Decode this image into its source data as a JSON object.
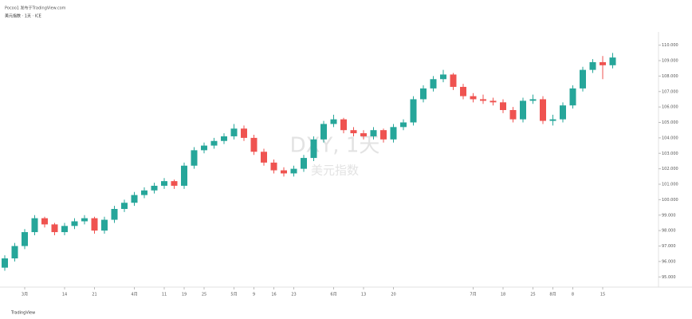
{
  "header": {
    "publisher": "Pocoo1 发布于TradingView.com",
    "symbol_line": "美元指数 · 1天 · ICE"
  },
  "footer": {
    "brand": "TradingView"
  },
  "chart_data": {
    "type": "candlestick",
    "watermark": {
      "symbol": "DXY, 1天",
      "name": "美元指数"
    },
    "up_color": "#26a69a",
    "down_color": "#ef5350",
    "open": [
      95.6,
      96.2,
      97.0,
      97.9,
      98.8,
      98.4,
      97.9,
      98.3,
      98.6,
      98.8,
      98.0,
      98.7,
      99.4,
      99.8,
      100.3,
      100.6,
      100.9,
      101.2,
      100.9,
      102.2,
      103.2,
      103.5,
      103.8,
      104.1,
      104.6,
      104.0,
      103.1,
      102.4,
      101.9,
      101.7,
      102.0,
      102.7,
      103.9,
      104.9,
      105.2,
      104.5,
      104.3,
      104.1,
      104.5,
      103.9,
      104.7,
      105.0,
      106.5,
      107.2,
      107.8,
      108.1,
      107.3,
      106.7,
      106.5,
      106.4,
      106.3,
      105.8,
      105.2,
      106.4,
      106.5,
      105.1,
      105.2,
      106.1,
      107.2,
      108.4,
      108.9,
      108.7
    ],
    "high": [
      96.4,
      97.2,
      98.1,
      99.0,
      98.9,
      98.5,
      98.5,
      98.8,
      99.0,
      98.9,
      98.9,
      99.6,
      100.0,
      100.5,
      100.8,
      101.1,
      101.4,
      101.3,
      102.4,
      103.4,
      103.7,
      104.0,
      104.3,
      104.9,
      104.8,
      104.2,
      103.3,
      102.6,
      102.1,
      102.2,
      102.9,
      104.1,
      105.1,
      105.5,
      105.3,
      104.7,
      104.5,
      104.7,
      104.6,
      104.9,
      105.2,
      106.7,
      107.4,
      108.0,
      108.4,
      108.2,
      107.5,
      106.9,
      106.8,
      106.6,
      106.5,
      106.0,
      106.6,
      106.8,
      106.7,
      105.5,
      106.3,
      107.4,
      108.6,
      109.1,
      109.3,
      109.5
    ],
    "low": [
      95.4,
      96.0,
      96.8,
      97.7,
      98.2,
      97.7,
      97.7,
      98.1,
      98.4,
      97.8,
      97.8,
      98.5,
      99.2,
      99.6,
      100.1,
      100.4,
      100.7,
      100.7,
      100.7,
      102.0,
      103.0,
      103.3,
      103.6,
      103.9,
      103.8,
      102.9,
      102.2,
      101.7,
      101.5,
      101.5,
      101.8,
      102.5,
      103.7,
      104.7,
      104.3,
      104.1,
      103.9,
      103.9,
      103.7,
      103.7,
      104.5,
      104.8,
      106.3,
      107.0,
      107.6,
      107.1,
      106.5,
      106.3,
      106.2,
      106.1,
      105.6,
      105.0,
      105.0,
      106.2,
      104.9,
      104.8,
      105.0,
      105.9,
      107.0,
      108.2,
      107.8,
      108.5
    ],
    "close": [
      96.2,
      97.0,
      97.9,
      98.8,
      98.4,
      97.9,
      98.3,
      98.6,
      98.8,
      98.0,
      98.7,
      99.4,
      99.8,
      100.3,
      100.6,
      100.9,
      101.2,
      100.9,
      102.2,
      103.2,
      103.5,
      103.8,
      104.1,
      104.6,
      104.0,
      103.1,
      102.4,
      101.9,
      101.7,
      102.0,
      102.7,
      103.9,
      104.9,
      105.2,
      104.5,
      104.3,
      104.1,
      104.5,
      103.9,
      104.7,
      105.0,
      106.5,
      107.2,
      107.8,
      108.1,
      107.3,
      106.7,
      106.5,
      106.4,
      106.3,
      105.8,
      105.2,
      106.4,
      106.5,
      105.1,
      105.2,
      106.1,
      107.2,
      108.4,
      108.9,
      108.7,
      109.2
    ],
    "xticks": [
      {
        "value": 2,
        "label": "3月"
      },
      {
        "value": 6,
        "label": "14"
      },
      {
        "value": 9,
        "label": "21"
      },
      {
        "value": 13,
        "label": "4月"
      },
      {
        "value": 16,
        "label": "11"
      },
      {
        "value": 18,
        "label": "19"
      },
      {
        "value": 20,
        "label": "25"
      },
      {
        "value": 23,
        "label": "5月"
      },
      {
        "value": 25,
        "label": "9"
      },
      {
        "value": 27,
        "label": "16"
      },
      {
        "value": 29,
        "label": "23"
      },
      {
        "value": 33,
        "label": "6月"
      },
      {
        "value": 36,
        "label": "13"
      },
      {
        "value": 39,
        "label": "20"
      },
      {
        "value": 47,
        "label": "7月"
      },
      {
        "value": 50,
        "label": "18"
      },
      {
        "value": 53,
        "label": "25"
      },
      {
        "value": 55,
        "label": "8月"
      },
      {
        "value": 57,
        "label": "8"
      },
      {
        "value": 60,
        "label": "15"
      }
    ],
    "ylim": [
      94.6,
      110.6
    ],
    "yticks": [
      {
        "value": 95,
        "label": "95.000"
      },
      {
        "value": 96,
        "label": "96.000"
      },
      {
        "value": 97,
        "label": "97.000"
      },
      {
        "value": 98,
        "label": "98.000"
      },
      {
        "value": 99,
        "label": "99.000"
      },
      {
        "value": 100,
        "label": "100.000"
      },
      {
        "value": 101,
        "label": "101.000"
      },
      {
        "value": 102,
        "label": "102.000"
      },
      {
        "value": 103,
        "label": "103.000"
      },
      {
        "value": 104,
        "label": "104.000"
      },
      {
        "value": 105,
        "label": "105.000"
      },
      {
        "value": 106,
        "label": "106.000"
      },
      {
        "value": 107,
        "label": "107.000"
      },
      {
        "value": 108,
        "label": "108.000"
      },
      {
        "value": 109,
        "label": "109.000"
      },
      {
        "value": 110,
        "label": "110.000"
      }
    ]
  }
}
